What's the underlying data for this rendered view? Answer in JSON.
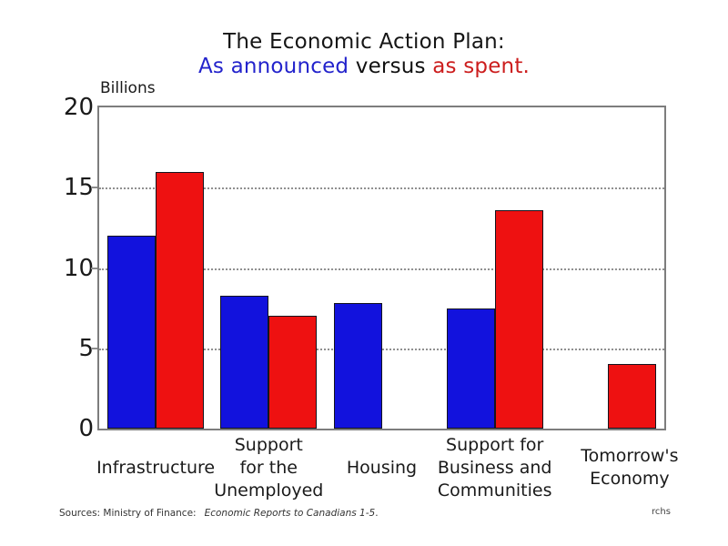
{
  "chart_data": {
    "type": "bar",
    "title": "The Economic Action Plan:",
    "subtitle": {
      "blue_text": "As announced",
      "black_text": " versus ",
      "red_text": "as spent."
    },
    "unit_label": "Billions",
    "categories": [
      "Infrastructure",
      "Support for the Unemployed",
      "Housing",
      "Support for Business and Communities",
      "Tomorrow's Economy"
    ],
    "category_display": [
      [
        "Infrastructure"
      ],
      [
        "Support",
        "for the",
        "Unemployed"
      ],
      [
        "Housing"
      ],
      [
        "Support for",
        "Business and",
        "Communities"
      ],
      [
        "Tomorrow's",
        "Economy"
      ]
    ],
    "series": [
      {
        "name": "As announced",
        "color": "#1212dd",
        "values": [
          12,
          8.3,
          7.8,
          7.5,
          null
        ]
      },
      {
        "name": "As spent",
        "color": "#ee1111",
        "values": [
          16,
          7,
          null,
          13.6,
          4
        ]
      }
    ],
    "ylim": [
      0,
      20
    ],
    "yticks": [
      0,
      5,
      10,
      15,
      20
    ],
    "gridlines": [
      5,
      10,
      15
    ],
    "grid": "horizontal dotted",
    "legend_position": "none (series encoded by subtitle colors)",
    "colors": {
      "announced_bar": "#1212dd",
      "spent_bar": "#ee1111",
      "subtitle_blue": "#2323cc",
      "subtitle_red": "#cc1d1d",
      "axis_gray": "#7d7d7d"
    }
  },
  "footer": {
    "sources_label": "Sources: Ministry of Finance:",
    "sources_citation": "Economic Reports to Canadians 1-5",
    "sources_period": ".",
    "watermark": "rchs"
  }
}
